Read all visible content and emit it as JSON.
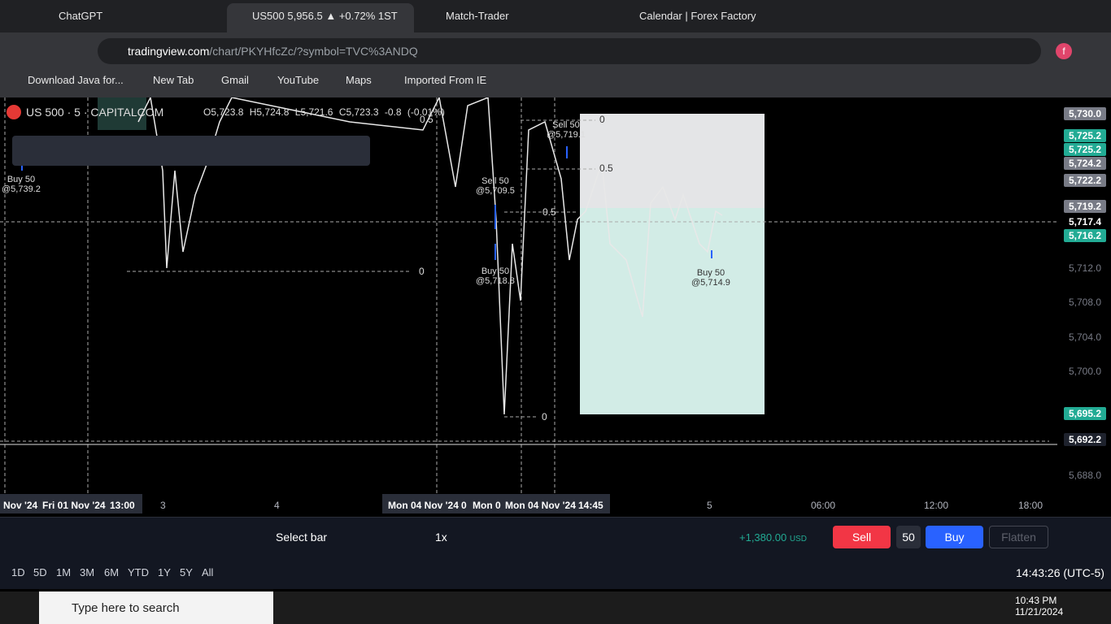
{
  "browser": {
    "tabs": [
      "ChatGPT",
      "US500 5,956.5 ▲ +0.72% 1ST",
      "Match-Trader",
      "Calendar | Forex Factory"
    ],
    "url_host": "tradingview.com",
    "url_path": "/chart/PKYHfcZc/?symbol=TVC%3ANDQ",
    "bookmarks": [
      "Download Java for...",
      "New Tab",
      "Gmail",
      "YouTube",
      "Maps",
      "Imported From IE"
    ],
    "profile": "f"
  },
  "chart": {
    "symbol": "US 500 · 5 · CAPITALCOM",
    "ohlc": [
      "O5,723.8",
      "H5,724.8",
      "L5,721.6",
      "C5,723.3",
      "-0.8 (-0.01%)"
    ],
    "price_labels": [
      "5,712.0",
      "5,708.0",
      "5,704.0",
      "5,700.0",
      "5,688.0"
    ],
    "price_badges": [
      "5,730.0",
      "5,725.2",
      "5,725.2",
      "5,724.2",
      "5,722.2",
      "5,719.2",
      "5,717.4",
      "5,716.2",
      "5,695.2",
      "5,692.2"
    ],
    "time_labels": [
      "Nov '24",
      "Fri 01 Nov '24",
      "13:00",
      "3",
      "4",
      "Mon 04 Nov '24",
      "0",
      "Mon 0",
      "Mon 04 Nov '24",
      "14:45",
      "5",
      "06:00",
      "12:00",
      "18:00"
    ],
    "trades": [
      {
        "side": "Buy 50",
        "price": "@5,739.2"
      },
      {
        "side": "Sell 50",
        "price": "@5,709.5"
      },
      {
        "side": "Buy 50",
        "price": "@5,718.8"
      },
      {
        "side": "Sell 50",
        "price": "@5,719.1"
      },
      {
        "side": "Buy 50",
        "price": "@5,714.9"
      }
    ],
    "fib_labels": [
      "0.5",
      "0",
      "0.5",
      "0.5",
      "0",
      "0"
    ]
  },
  "replay": {
    "select": "Select bar",
    "speed": "1x",
    "pnl": "+1,380.00",
    "currency": "USD",
    "sell": "Sell",
    "qty": "50",
    "buy": "Buy",
    "flatten": "Flatten"
  },
  "periods": [
    "1D",
    "5D",
    "1M",
    "3M",
    "6M",
    "YTD",
    "1Y",
    "5Y",
    "All"
  ],
  "clock": "14:43:26 (UTC-5)",
  "taskbar": {
    "search": "Type here to search",
    "time": "10:43 PM",
    "date": "11/21/2024"
  }
}
